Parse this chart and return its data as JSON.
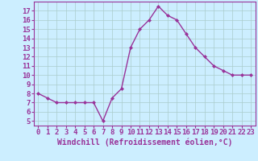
{
  "x": [
    0,
    1,
    2,
    3,
    4,
    5,
    6,
    7,
    8,
    9,
    10,
    11,
    12,
    13,
    14,
    15,
    16,
    17,
    18,
    19,
    20,
    21,
    22,
    23
  ],
  "y": [
    8,
    7.5,
    7,
    7,
    7,
    7,
    7,
    5,
    7.5,
    8.5,
    13,
    15,
    16,
    17.5,
    16.5,
    16,
    14.5,
    13,
    12,
    11,
    10.5,
    10,
    10,
    10
  ],
  "line_color": "#993399",
  "marker": "D",
  "marker_size": 2,
  "bg_color": "#cceeff",
  "grid_color": "#aacccc",
  "xlabel": "Windchill (Refroidissement éolien,°C)",
  "xlabel_color": "#993399",
  "xlabel_fontsize": 7,
  "yticks": [
    5,
    6,
    7,
    8,
    9,
    10,
    11,
    12,
    13,
    14,
    15,
    16,
    17
  ],
  "xticks": [
    0,
    1,
    2,
    3,
    4,
    5,
    6,
    7,
    8,
    9,
    10,
    11,
    12,
    13,
    14,
    15,
    16,
    17,
    18,
    19,
    20,
    21,
    22,
    23
  ],
  "ylim": [
    4.5,
    18.0
  ],
  "xlim": [
    -0.5,
    23.5
  ],
  "tick_fontsize": 6.5,
  "tick_color": "#993399",
  "spine_color": "#993399",
  "linewidth": 1.0
}
